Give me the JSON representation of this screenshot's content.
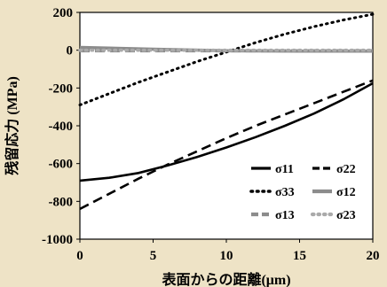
{
  "page": {
    "background": "#eee3c6",
    "plot_background": "#ffffff"
  },
  "chart_data": {
    "type": "line",
    "title": "",
    "xlabel": "表面からの距離(μm)",
    "ylabel": "残留応力 (MPa)",
    "xlim": [
      0,
      20
    ],
    "ylim": [
      -1000,
      200
    ],
    "xticks": [
      "0",
      "5",
      "10",
      "15",
      "20"
    ],
    "yticks": [
      "200",
      "0",
      "-200",
      "-400",
      "-600",
      "-800",
      "-1000"
    ],
    "grid": false,
    "legend_position": "bottom-right",
    "series": [
      {
        "name": "σ11",
        "style": "solid",
        "color": "#000000",
        "x": [
          0,
          2,
          4,
          6,
          8,
          10,
          12,
          14,
          16,
          18,
          20
        ],
        "y": [
          -690,
          -675,
          -650,
          -610,
          -565,
          -515,
          -460,
          -400,
          -335,
          -260,
          -175
        ]
      },
      {
        "name": "σ22",
        "style": "dashed",
        "color": "#000000",
        "x": [
          0,
          2,
          4,
          6,
          8,
          10,
          12,
          14,
          16,
          18,
          20
        ],
        "y": [
          -840,
          -760,
          -680,
          -605,
          -535,
          -465,
          -400,
          -340,
          -280,
          -220,
          -160
        ]
      },
      {
        "name": "σ33",
        "style": "dotted",
        "color": "#000000",
        "x": [
          0,
          2,
          4,
          6,
          8,
          10,
          12,
          14,
          16,
          18,
          20
        ],
        "y": [
          -290,
          -230,
          -170,
          -115,
          -60,
          -10,
          40,
          85,
          125,
          160,
          190
        ]
      },
      {
        "name": "σ12",
        "style": "solid",
        "color": "#8c8c8c",
        "x": [
          0,
          5,
          10,
          15,
          20
        ],
        "y": [
          15,
          5,
          -3,
          -5,
          -5
        ]
      },
      {
        "name": "σ13",
        "style": "dashed",
        "color": "#8c8c8c",
        "x": [
          0,
          5,
          10,
          15,
          20
        ],
        "y": [
          -3,
          -3,
          -3,
          -3,
          -3
        ]
      },
      {
        "name": "σ23",
        "style": "dotted",
        "color": "#aaaaaa",
        "x": [
          0,
          5,
          10,
          15,
          20
        ],
        "y": [
          0,
          0,
          0,
          0,
          0
        ]
      }
    ]
  }
}
